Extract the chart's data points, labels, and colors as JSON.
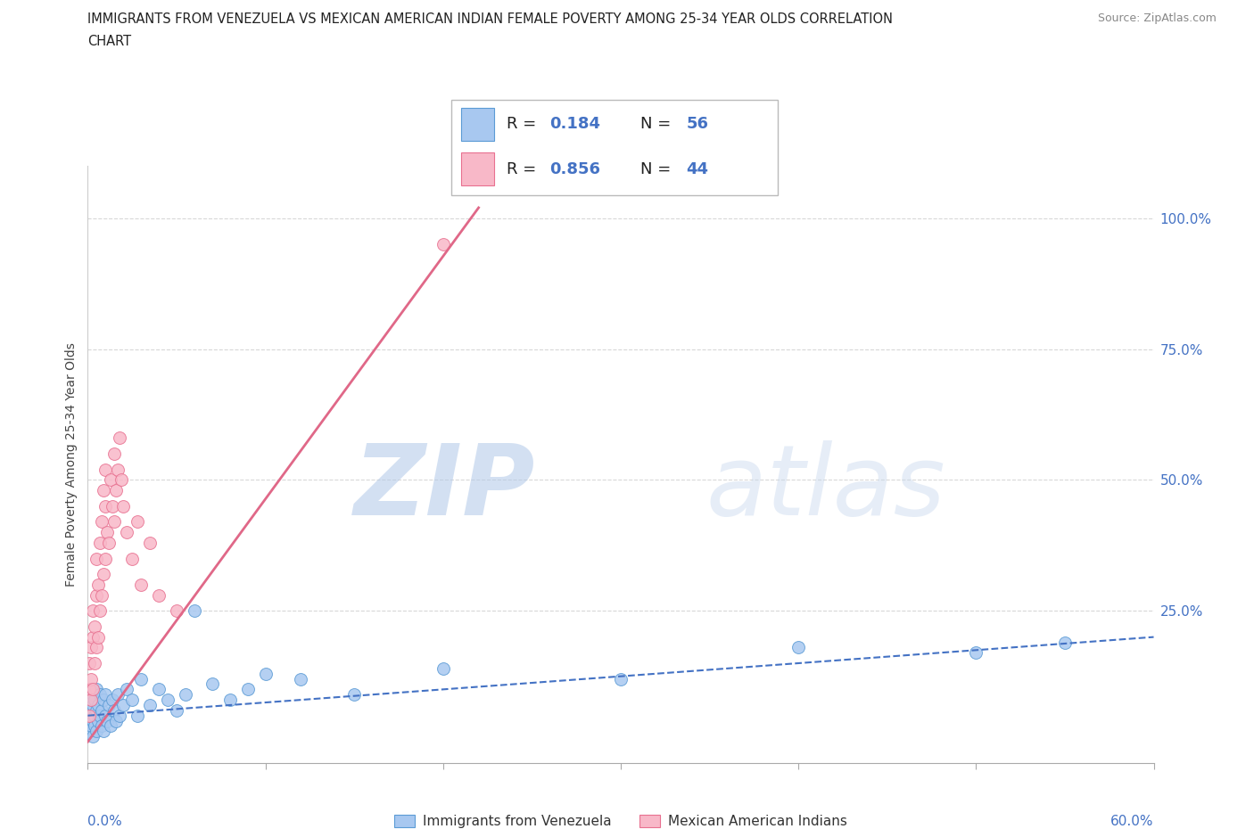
{
  "title_line1": "IMMIGRANTS FROM VENEZUELA VS MEXICAN AMERICAN INDIAN FEMALE POVERTY AMONG 25-34 YEAR OLDS CORRELATION",
  "title_line2": "CHART",
  "source": "Source: ZipAtlas.com",
  "ylabel": "Female Poverty Among 25-34 Year Olds",
  "xlim": [
    0.0,
    0.6
  ],
  "ylim": [
    -0.04,
    1.1
  ],
  "yticks": [
    0.25,
    0.5,
    0.75,
    1.0
  ],
  "ytick_labels": [
    "25.0%",
    "50.0%",
    "75.0%",
    "100.0%"
  ],
  "legend_label1": "Immigrants from Venezuela",
  "legend_label2": "Mexican American Indians",
  "R1": "0.184",
  "N1": "56",
  "R2": "0.856",
  "N2": "44",
  "color_blue": "#A8C8F0",
  "color_pink": "#F8B8C8",
  "color_blue_edge": "#5B9BD5",
  "color_pink_edge": "#E87090",
  "color_blue_text": "#4472C4",
  "color_pink_line": "#E06888",
  "background_color": "#FFFFFF",
  "grid_color": "#D8D8D8",
  "watermark": "ZIPatlas",
  "watermark_color": "#C8D8F0",
  "blue_x": [
    0.001,
    0.001,
    0.001,
    0.002,
    0.002,
    0.002,
    0.003,
    0.003,
    0.003,
    0.003,
    0.004,
    0.004,
    0.004,
    0.005,
    0.005,
    0.005,
    0.006,
    0.006,
    0.007,
    0.007,
    0.008,
    0.008,
    0.009,
    0.009,
    0.01,
    0.01,
    0.011,
    0.012,
    0.013,
    0.014,
    0.015,
    0.016,
    0.017,
    0.018,
    0.02,
    0.022,
    0.025,
    0.028,
    0.03,
    0.035,
    0.04,
    0.045,
    0.05,
    0.055,
    0.06,
    0.07,
    0.08,
    0.09,
    0.1,
    0.12,
    0.15,
    0.2,
    0.3,
    0.4,
    0.5,
    0.55
  ],
  "blue_y": [
    0.05,
    0.08,
    0.02,
    0.06,
    0.1,
    0.03,
    0.07,
    0.04,
    0.09,
    0.01,
    0.05,
    0.08,
    0.03,
    0.06,
    0.02,
    0.1,
    0.04,
    0.07,
    0.05,
    0.09,
    0.03,
    0.06,
    0.08,
    0.02,
    0.05,
    0.09,
    0.04,
    0.07,
    0.03,
    0.08,
    0.06,
    0.04,
    0.09,
    0.05,
    0.07,
    0.1,
    0.08,
    0.05,
    0.12,
    0.07,
    0.1,
    0.08,
    0.06,
    0.09,
    0.25,
    0.11,
    0.08,
    0.1,
    0.13,
    0.12,
    0.09,
    0.14,
    0.12,
    0.18,
    0.17,
    0.19
  ],
  "pink_x": [
    0.001,
    0.001,
    0.001,
    0.002,
    0.002,
    0.002,
    0.003,
    0.003,
    0.003,
    0.004,
    0.004,
    0.005,
    0.005,
    0.005,
    0.006,
    0.006,
    0.007,
    0.007,
    0.008,
    0.008,
    0.009,
    0.009,
    0.01,
    0.01,
    0.01,
    0.011,
    0.012,
    0.013,
    0.014,
    0.015,
    0.015,
    0.016,
    0.017,
    0.018,
    0.019,
    0.02,
    0.022,
    0.025,
    0.028,
    0.03,
    0.035,
    0.04,
    0.05,
    0.2
  ],
  "pink_y": [
    0.05,
    0.1,
    0.15,
    0.08,
    0.12,
    0.18,
    0.1,
    0.2,
    0.25,
    0.15,
    0.22,
    0.18,
    0.28,
    0.35,
    0.2,
    0.3,
    0.25,
    0.38,
    0.28,
    0.42,
    0.32,
    0.48,
    0.35,
    0.45,
    0.52,
    0.4,
    0.38,
    0.5,
    0.45,
    0.42,
    0.55,
    0.48,
    0.52,
    0.58,
    0.5,
    0.45,
    0.4,
    0.35,
    0.42,
    0.3,
    0.38,
    0.28,
    0.25,
    0.95
  ],
  "pink_line_x": [
    0.0,
    0.22
  ],
  "pink_line_y": [
    0.0,
    1.02
  ],
  "blue_line_x": [
    0.0,
    0.6
  ],
  "blue_line_y": [
    0.05,
    0.2
  ]
}
